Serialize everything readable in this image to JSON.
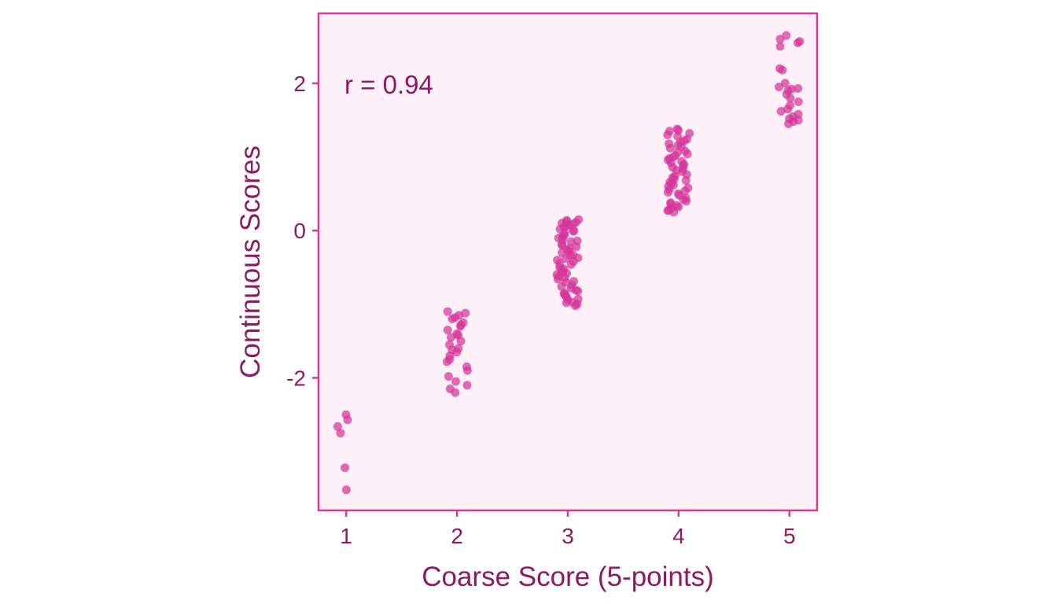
{
  "chart_data": {
    "type": "scatter",
    "title": "",
    "xlabel": "Coarse Score (5-points)",
    "ylabel": "Continuous Scores",
    "annotation": "r = 0.94",
    "x_ticks": [
      1,
      2,
      3,
      4,
      5
    ],
    "x_tick_labels": [
      "1",
      "2",
      "3",
      "4",
      "5"
    ],
    "y_ticks": [
      -2,
      0,
      2
    ],
    "y_tick_labels": [
      "-2",
      "0",
      "2"
    ],
    "xlim": [
      0.75,
      5.25
    ],
    "ylim": [
      -3.8,
      2.95
    ],
    "grid": false,
    "legend": "none",
    "colors": {
      "point": "#d4349a",
      "panel_fill": "#fdf0f7",
      "panel_border": "#cc3d99",
      "text": "#8c1a63"
    },
    "groups": [
      {
        "x": 1,
        "y_values": [
          -2.5,
          -2.57,
          -2.66,
          -2.75,
          -3.22,
          -3.52
        ]
      },
      {
        "x": 2,
        "y_values": [
          -1.1,
          -1.12,
          -1.15,
          -1.18,
          -1.2,
          -1.25,
          -1.3,
          -1.35,
          -1.4,
          -1.45,
          -1.5,
          -1.55,
          -1.6,
          -1.65,
          -1.7,
          -1.78,
          -1.85,
          -1.9,
          -1.98,
          -2.05,
          -2.1,
          -2.15,
          -2.2,
          -1.42,
          -1.28,
          -1.62,
          -1.75
        ]
      },
      {
        "x": 3,
        "y_values": [
          0.15,
          0.12,
          0.1,
          0.08,
          0.05,
          0.02,
          0.0,
          -0.03,
          -0.06,
          -0.1,
          -0.14,
          -0.18,
          -0.22,
          -0.26,
          -0.3,
          -0.34,
          -0.38,
          -0.42,
          -0.46,
          -0.5,
          -0.54,
          -0.58,
          -0.62,
          -0.66,
          -0.7,
          -0.74,
          -0.78,
          -0.82,
          -0.86,
          -0.9,
          -0.94,
          -0.98,
          -1.02,
          0.14,
          0.06,
          -0.08,
          -0.2,
          -0.33,
          -0.45,
          -0.57,
          -0.69,
          -0.81,
          -0.93,
          -1.0,
          0.11,
          -0.01,
          -0.15,
          -0.28,
          -0.4,
          -0.52,
          -0.64,
          -0.76,
          -0.88,
          -0.97,
          0.09,
          -0.12,
          -0.37,
          -0.6,
          -0.85,
          -0.24
        ]
      },
      {
        "x": 4,
        "y_values": [
          1.38,
          1.35,
          1.32,
          1.28,
          1.24,
          1.2,
          1.16,
          1.12,
          1.08,
          1.04,
          1.0,
          0.96,
          0.92,
          0.88,
          0.84,
          0.8,
          0.76,
          0.72,
          0.68,
          0.64,
          0.6,
          0.56,
          0.52,
          0.48,
          0.44,
          0.4,
          0.36,
          0.32,
          0.28,
          0.25,
          1.36,
          1.18,
          1.02,
          0.86,
          0.7,
          0.54,
          0.38,
          0.3,
          1.3,
          1.14,
          0.98,
          0.82,
          0.66,
          0.5,
          0.34,
          0.27,
          1.22,
          1.06,
          0.9,
          0.74,
          0.58,
          0.42,
          0.94,
          0.62
        ]
      },
      {
        "x": 5,
        "y_values": [
          2.65,
          2.6,
          2.55,
          2.5,
          2.2,
          2.18,
          2.0,
          1.95,
          1.92,
          1.9,
          1.85,
          1.8,
          1.75,
          1.7,
          1.65,
          1.62,
          1.58,
          1.55,
          1.52,
          1.5,
          1.48,
          1.45,
          2.57,
          1.93
        ]
      }
    ]
  }
}
